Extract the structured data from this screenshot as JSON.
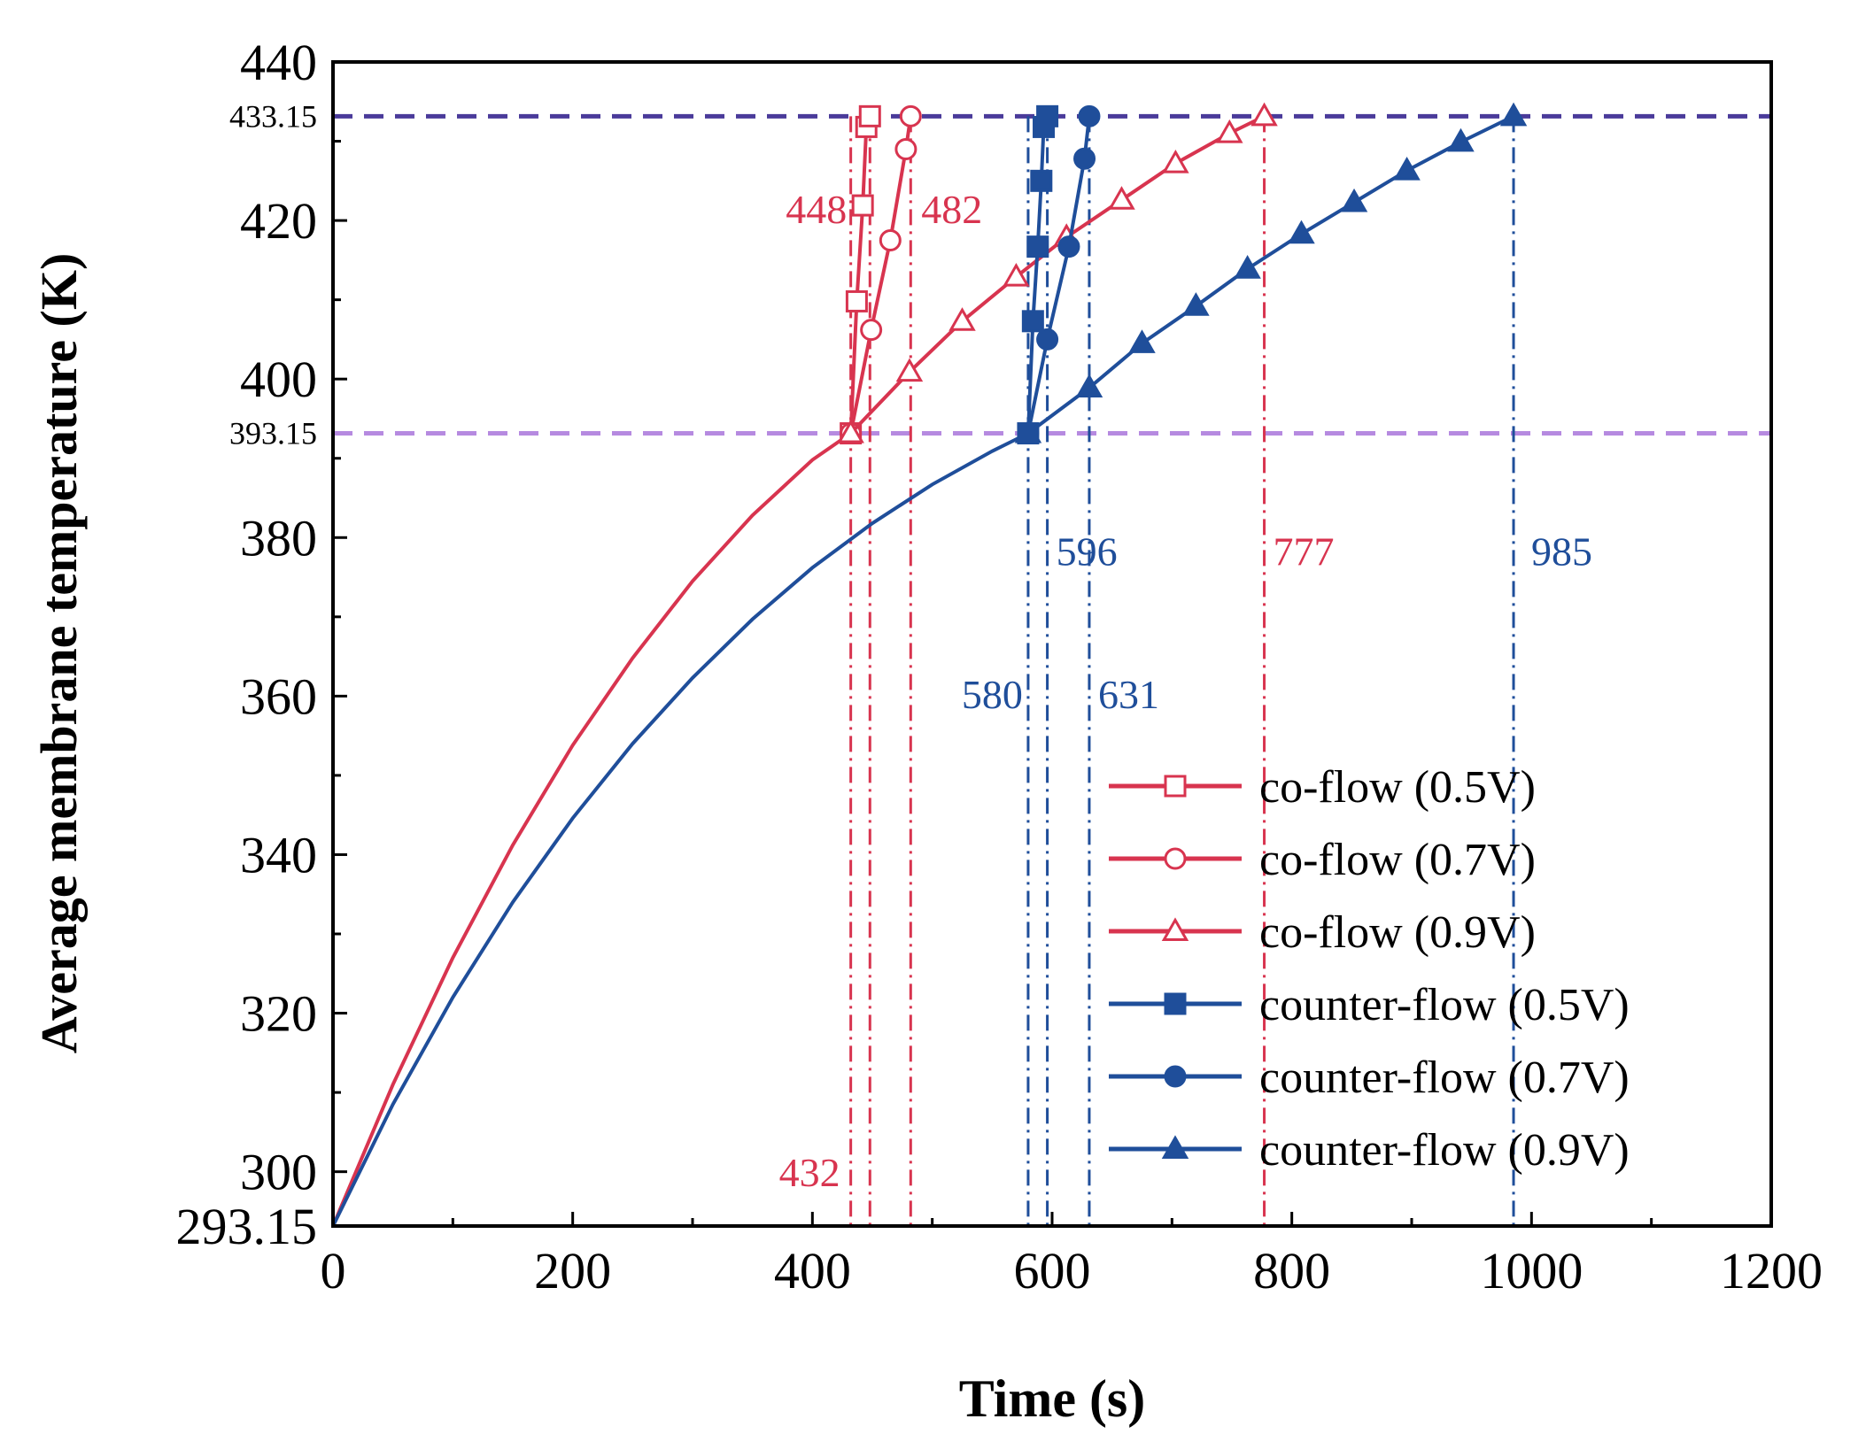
{
  "chart_data": {
    "type": "line",
    "xlabel": "Time (s)",
    "ylabel": "Average membrane temperature (K)",
    "xlim": [
      0,
      1200
    ],
    "ylim": [
      293.15,
      440
    ],
    "xticks": [
      {
        "v": 0,
        "label": "0"
      },
      {
        "v": 200,
        "label": "200"
      },
      {
        "v": 400,
        "label": "400"
      },
      {
        "v": 600,
        "label": "600"
      },
      {
        "v": 800,
        "label": "800"
      },
      {
        "v": 1000,
        "label": "1000"
      },
      {
        "v": 1200,
        "label": "1200"
      }
    ],
    "yticks": [
      {
        "v": 293.15,
        "label": "293.15"
      },
      {
        "v": 300,
        "label": "300"
      },
      {
        "v": 320,
        "label": "320"
      },
      {
        "v": 340,
        "label": "340"
      },
      {
        "v": 360,
        "label": "360"
      },
      {
        "v": 380,
        "label": "380"
      },
      {
        "v": 393.15,
        "label": "393.15"
      },
      {
        "v": 400,
        "label": "400"
      },
      {
        "v": 420,
        "label": "420"
      },
      {
        "v": 433.15,
        "label": "433.15"
      },
      {
        "v": 440,
        "label": "440"
      }
    ],
    "hlines": [
      {
        "y": 433.15,
        "color": "#4a3b9a",
        "name": "hline-433"
      },
      {
        "y": 393.15,
        "color": "#b68ae0",
        "name": "hline-393"
      }
    ],
    "vlines": [
      {
        "x": 432,
        "label": "432",
        "color": "#d8344f",
        "label_t": 298.2,
        "label_dx": -12,
        "anchor": "end"
      },
      {
        "x": 448,
        "label": "448",
        "color": "#d8344f",
        "label_t": 419.7,
        "label_dx": -26,
        "anchor": "end"
      },
      {
        "x": 482,
        "label": "482",
        "color": "#d8344f",
        "label_t": 419.7,
        "label_dx": 12,
        "anchor": "start"
      },
      {
        "x": 580,
        "label": "580",
        "color": "#1f4e9a",
        "label_t": 358.5,
        "label_dx": -6,
        "anchor": "end"
      },
      {
        "x": 596,
        "label": "596",
        "color": "#1f4e9a",
        "label_t": 376.5,
        "label_dx": 10,
        "anchor": "start"
      },
      {
        "x": 631,
        "label": "631",
        "color": "#1f4e9a",
        "label_t": 358.5,
        "label_dx": 10,
        "anchor": "start"
      },
      {
        "x": 777,
        "label": "777",
        "color": "#d8344f",
        "label_t": 376.5,
        "label_dx": 10,
        "anchor": "start"
      },
      {
        "x": 985,
        "label": "985",
        "color": "#1f4e9a",
        "label_t": 376.5,
        "label_dx": 20,
        "anchor": "start"
      }
    ],
    "series": [
      {
        "name": "co-flow (0.5V)",
        "color": "#d8344f",
        "marker": "square",
        "fill": false,
        "x": [
          432,
          437,
          442,
          445,
          448
        ],
        "y": [
          393.15,
          409.8,
          421.9,
          431.8,
          433.15
        ]
      },
      {
        "name": "co-flow (0.7V)",
        "color": "#d8344f",
        "marker": "circle",
        "fill": false,
        "x": [
          432,
          449,
          465,
          478,
          482
        ],
        "y": [
          393.15,
          406.2,
          417.5,
          429.0,
          433.15
        ]
      },
      {
        "name": "co-flow (0.9V)",
        "color": "#d8344f",
        "marker": "triangle",
        "fill": false,
        "x": [
          432,
          481,
          525,
          570,
          612,
          658,
          703,
          748,
          777
        ],
        "y": [
          393.15,
          400.9,
          407.3,
          412.9,
          417.9,
          422.6,
          427.2,
          431.0,
          433.15
        ]
      },
      {
        "name": "counter-flow (0.5V)",
        "color": "#1f4e9a",
        "marker": "square",
        "fill": true,
        "x": [
          580,
          584,
          588,
          591,
          593,
          596
        ],
        "y": [
          393.15,
          407.3,
          416.7,
          425.0,
          431.8,
          433.15
        ]
      },
      {
        "name": "counter-flow (0.7V)",
        "color": "#1f4e9a",
        "marker": "circle",
        "fill": true,
        "x": [
          580,
          596,
          614,
          627,
          631
        ],
        "y": [
          393.15,
          405.0,
          416.7,
          427.8,
          433.15
        ]
      },
      {
        "name": "counter-flow (0.9V)",
        "color": "#1f4e9a",
        "marker": "triangle",
        "fill": true,
        "x": [
          580,
          631,
          675,
          720,
          763,
          808,
          852,
          896,
          941,
          985
        ],
        "y": [
          393.15,
          398.9,
          404.5,
          409.2,
          413.9,
          418.3,
          422.3,
          426.3,
          429.9,
          433.15
        ]
      }
    ],
    "approach_curves": [
      {
        "name": "co-flow-approach",
        "color": "#d8344f",
        "x": [
          0,
          50,
          100,
          150,
          200,
          250,
          300,
          350,
          400,
          432
        ],
        "y": [
          293.15,
          311.0,
          327.0,
          341.2,
          353.8,
          364.8,
          374.5,
          382.8,
          389.8,
          393.15
        ]
      },
      {
        "name": "counter-flow-approach",
        "color": "#1f4e9a",
        "x": [
          0,
          50,
          100,
          150,
          200,
          250,
          300,
          350,
          400,
          450,
          500,
          550,
          580
        ],
        "y": [
          293.15,
          308.5,
          322.0,
          334.0,
          344.6,
          354.0,
          362.3,
          369.7,
          376.2,
          381.8,
          386.7,
          390.9,
          393.15
        ]
      }
    ],
    "legend_position": "lower-right"
  }
}
